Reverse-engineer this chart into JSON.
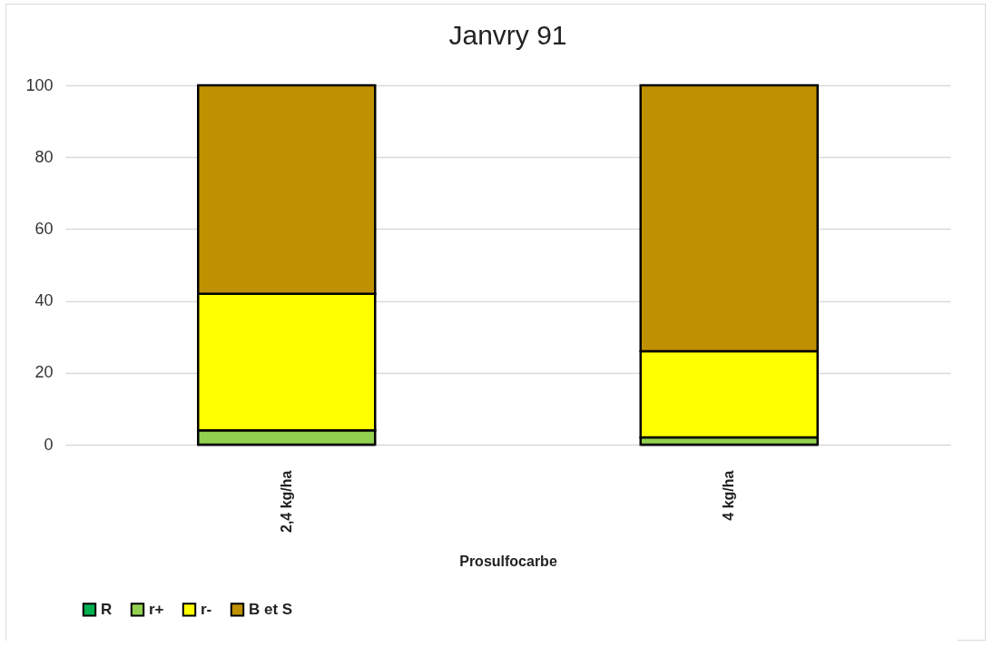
{
  "chart_data": {
    "type": "bar",
    "title": "Janvry 91",
    "xlabel": "Prosulfocarbe",
    "categories": [
      "2,4 kg/ha",
      "4 kg/ha"
    ],
    "stacked": true,
    "series": [
      {
        "name": "R",
        "color": "#00b050",
        "values": [
          0,
          0
        ]
      },
      {
        "name": "r+",
        "color": "#92d050",
        "values": [
          4,
          2
        ]
      },
      {
        "name": "r-",
        "color": "#ffff00",
        "values": [
          38,
          24
        ]
      },
      {
        "name": "B et S",
        "color": "#bf9000",
        "values": [
          58,
          74
        ]
      }
    ],
    "ylim": [
      0,
      100
    ],
    "yticks": [
      0,
      20,
      40,
      60,
      80,
      100
    ],
    "grid": "y",
    "legend": "bottom"
  }
}
